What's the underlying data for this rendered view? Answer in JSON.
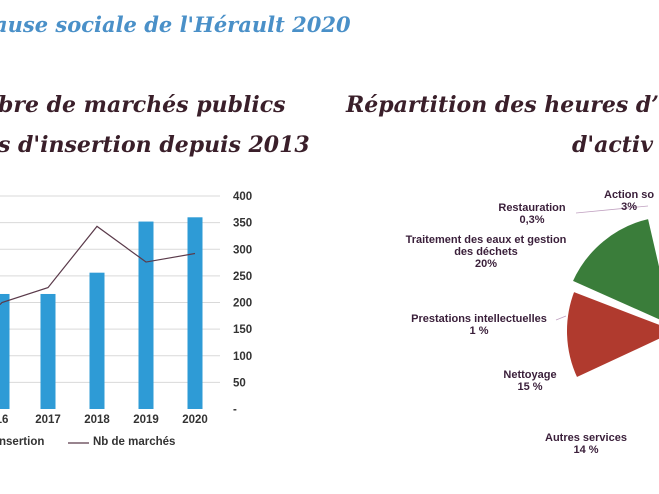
{
  "banner": "ause sociale de l'Hérault 2020",
  "left_title_1": "bre de marchés publics",
  "left_title_2": "s d'insertion depuis 2013",
  "right_title_1": "Répartition des heures d’i",
  "right_title_2": "d'activ",
  "chart_data": [
    {
      "type": "bar",
      "categories": [
        "16",
        "2017",
        "2018",
        "2019",
        "2020"
      ],
      "series": [
        {
          "name": "nsertion",
          "type": "bar",
          "values": [
            null,
            null,
            null,
            null,
            null
          ]
        },
        {
          "name": "Nb de marchés",
          "type": "line",
          "values": [
            200,
            228,
            343,
            276,
            292
          ]
        }
      ],
      "bar_fractions": [
        0.54,
        0.54,
        0.64,
        0.88,
        0.9
      ],
      "y2_ticks": [
        "400",
        "350",
        "300",
        "250",
        "200",
        "150",
        "100",
        "50",
        "-"
      ],
      "y2lim": [
        0,
        400
      ],
      "colors": {
        "bars": "#2e9bd6",
        "line": "#5a3a4a",
        "grid": "#d9d9d9"
      }
    },
    {
      "type": "pie",
      "slices": [
        {
          "label": "Action so",
          "value_label": "3%",
          "value": 3,
          "color": "#e86fc8"
        },
        {
          "label": "Restauration",
          "value_label": "0,3%",
          "value": 0.3,
          "color": "#f5a623"
        },
        {
          "label": "Traitement des eaux et gestion des déchets",
          "value_label": "20%",
          "value": 20,
          "color": "#8db8e0"
        },
        {
          "label": "Prestations intellectuelles",
          "value_label": "1 %",
          "value": 1,
          "color": "#7a3fa3"
        },
        {
          "label": "Nettoyage",
          "value_label": "15 %",
          "value": 15,
          "color": "#3a7d3a"
        },
        {
          "label": "Autres services",
          "value_label": "14 %",
          "value": 14,
          "color": "#b03a2e"
        }
      ]
    }
  ]
}
